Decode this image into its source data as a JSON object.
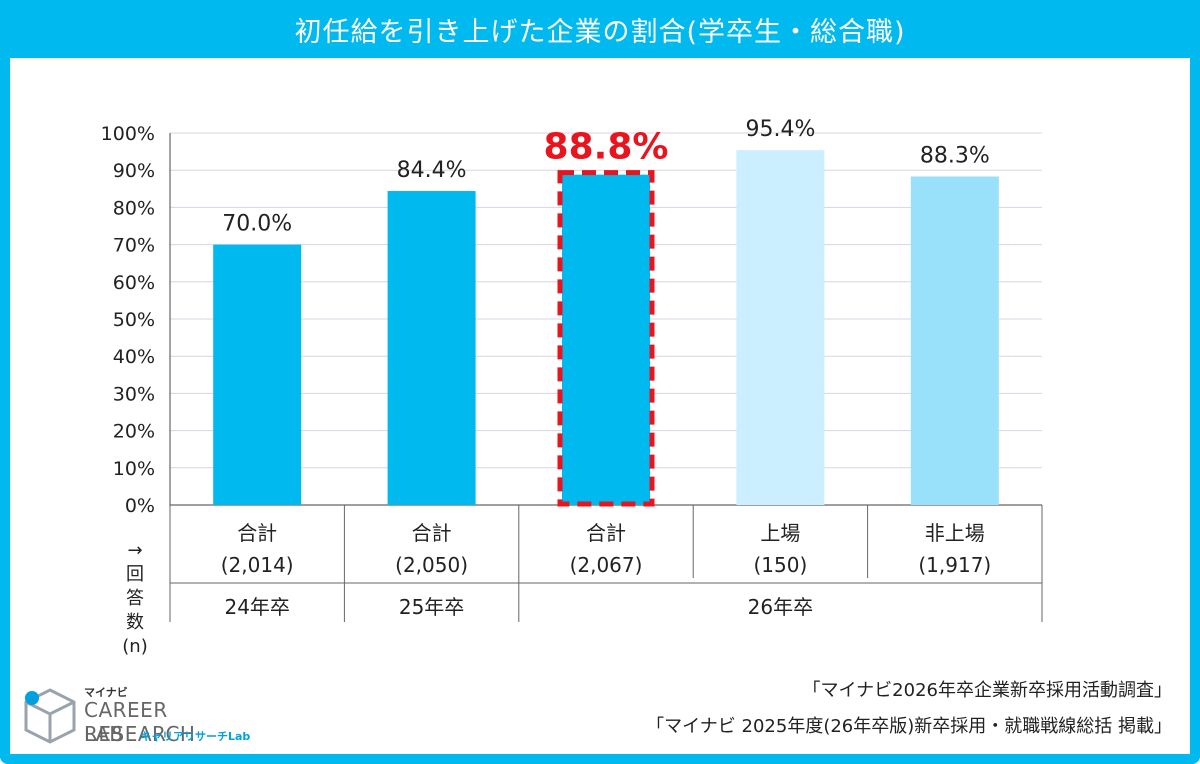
{
  "header": {
    "title": "初任給を引き上げた企業の割合(学卒生・総合職)"
  },
  "chart_data": {
    "type": "bar",
    "title": "初任給を引き上げた企業の割合(学卒生・総合職)",
    "ylim": [
      0,
      100
    ],
    "yticks": [
      "0%",
      "10%",
      "20%",
      "30%",
      "40%",
      "50%",
      "60%",
      "70%",
      "80%",
      "90%",
      "100%"
    ],
    "grid": true,
    "categories": [
      {
        "label": "合計",
        "n": "(2,014)",
        "group": "24年卒",
        "value": 70.0,
        "value_label": "70.0%",
        "color": "#00b9ef",
        "highlight": false
      },
      {
        "label": "合計",
        "n": "(2,050)",
        "group": "25年卒",
        "value": 84.4,
        "value_label": "84.4%",
        "color": "#00b9ef",
        "highlight": false
      },
      {
        "label": "合計",
        "n": "(2,067)",
        "group": "26年卒",
        "value": 88.8,
        "value_label": "88.8%",
        "color": "#00b9ef",
        "highlight": true
      },
      {
        "label": "上場",
        "n": "(150)",
        "group": "26年卒",
        "value": 95.4,
        "value_label": "95.4%",
        "color": "#ccefff",
        "highlight": false
      },
      {
        "label": "非上場",
        "n": "(1,917)",
        "group": "26年卒",
        "value": 88.3,
        "value_label": "88.3%",
        "color": "#99e0fb",
        "highlight": false
      }
    ],
    "groups": [
      "24年卒",
      "25年卒",
      "26年卒"
    ],
    "n_axis_label": [
      "→",
      "回",
      "答",
      "数",
      "(n)"
    ],
    "highlight_color": "#e8141e"
  },
  "source": {
    "line1": "「マイナビ2026年卒企業新卒採用活動調査」",
    "line2": "「マイナビ 2025年度(26年卒版)新卒採用・就職戦線総括 掲載」"
  },
  "logo": {
    "brand": "マイナビ",
    "line1": "CAREER RESEARCH",
    "line2": "LAB",
    "kana": "キャリアリサーチLab"
  }
}
